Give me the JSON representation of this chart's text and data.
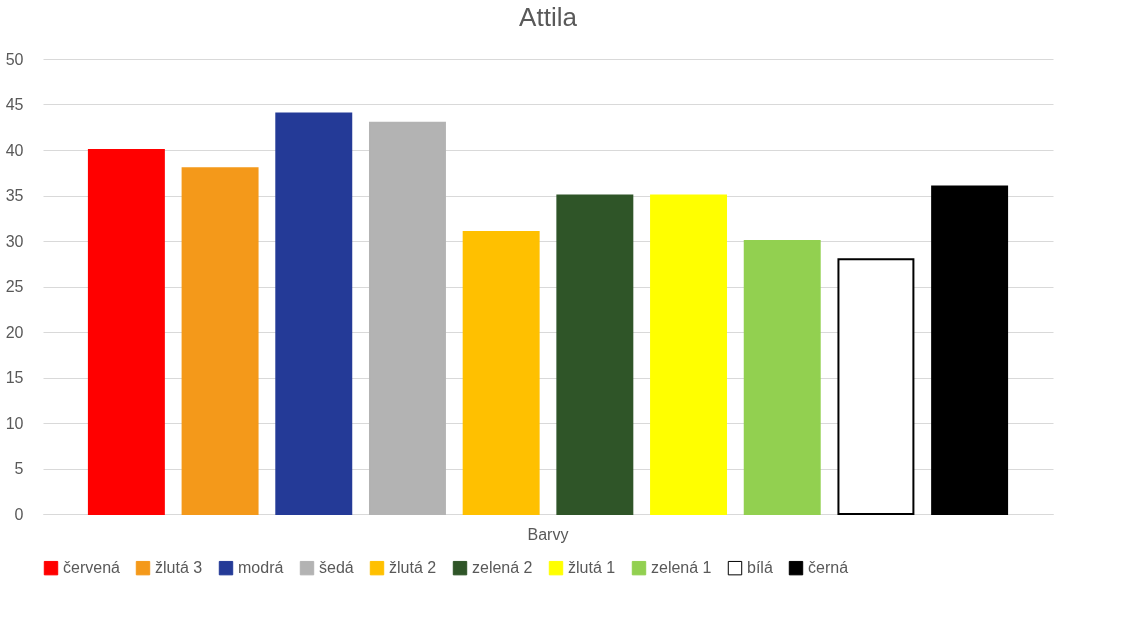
{
  "chart_data": {
    "type": "bar",
    "title": "Attila",
    "categories": [
      "Barvy"
    ],
    "series": [
      {
        "name": "červená",
        "color": "#ff0000",
        "values": [
          40
        ]
      },
      {
        "name": "žlutá 3",
        "color": "#f4991a",
        "values": [
          38
        ]
      },
      {
        "name": "modrá",
        "color": "#243a97",
        "values": [
          44
        ]
      },
      {
        "name": "šedá",
        "color": "#b3b3b3",
        "values": [
          43
        ]
      },
      {
        "name": "žlutá 2",
        "color": "#ffc000",
        "values": [
          31
        ]
      },
      {
        "name": "zelená 2",
        "color": "#2f5528",
        "values": [
          35
        ]
      },
      {
        "name": "žlutá 1",
        "color": "#ffff00",
        "values": [
          35
        ]
      },
      {
        "name": "zelená 1",
        "color": "#92d050",
        "values": [
          30
        ]
      },
      {
        "name": "bílá",
        "color": "#ffffff",
        "values": [
          28
        ]
      },
      {
        "name": "černá",
        "color": "#000000",
        "values": [
          36
        ]
      }
    ],
    "ylim": [
      0,
      50
    ],
    "yticks": [
      0,
      5,
      10,
      15,
      20,
      25,
      30,
      35,
      40,
      45,
      50
    ],
    "grid": "y",
    "legend": "bottom"
  }
}
